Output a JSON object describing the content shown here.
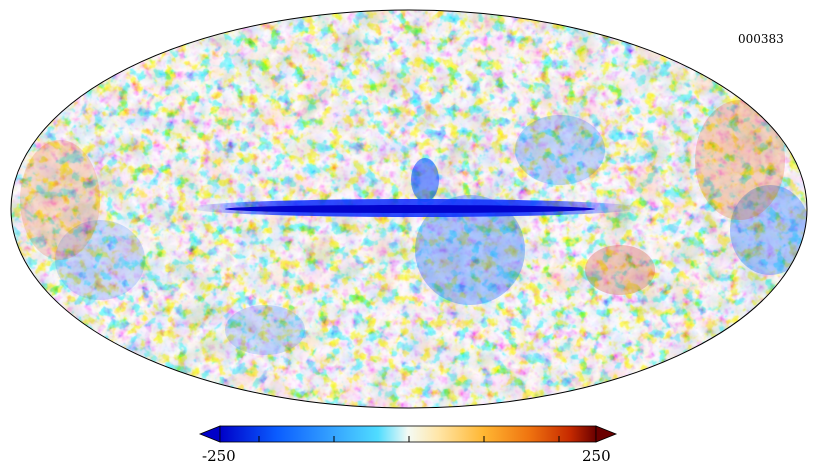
{
  "map": {
    "id_label": "000383",
    "projection": "mollweide",
    "colormap": [
      "#0000c8",
      "#0a5cff",
      "#35a3ff",
      "#4fdcff",
      "#dff7f2",
      "#fff2c9",
      "#ffb733",
      "#f07510",
      "#c72a00",
      "#6a0000"
    ],
    "outline_color": "#000000"
  },
  "colorbar": {
    "min_label": "-250",
    "max_label": "250",
    "extend": "both"
  }
}
